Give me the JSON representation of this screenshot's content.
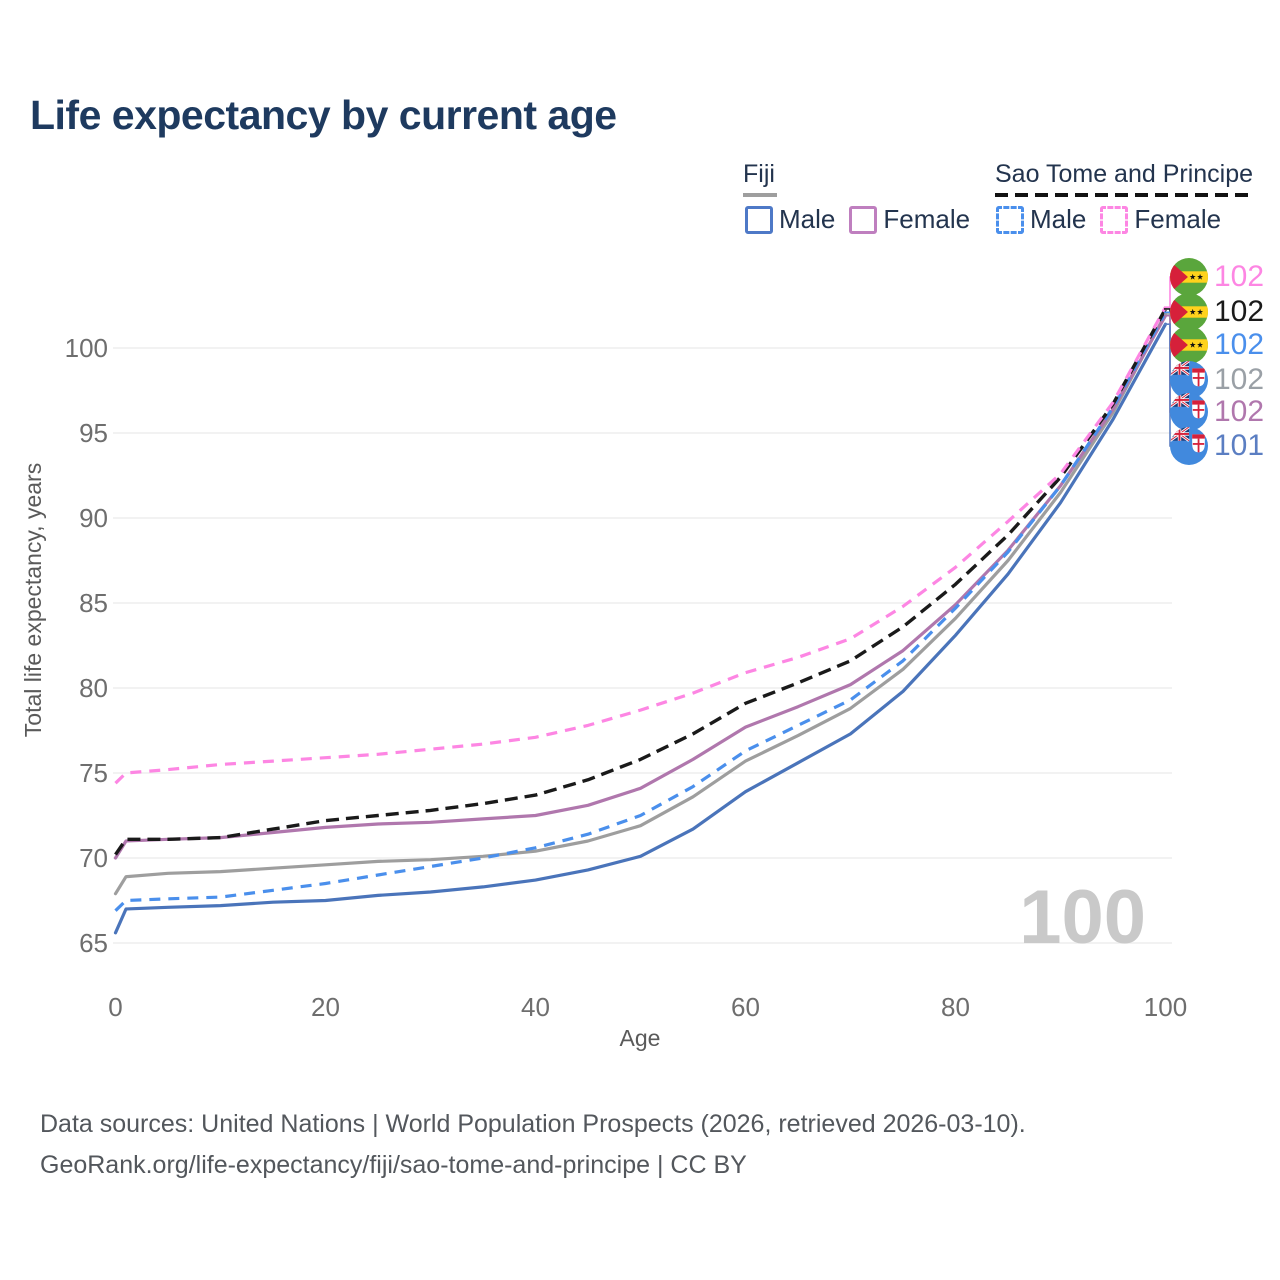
{
  "title": "Life expectancy by current age",
  "legend": {
    "fiji": {
      "label": "Fiji",
      "male_label": "Male",
      "female_label": "Female"
    },
    "sao_tome": {
      "label": "Sao Tome and Principe",
      "male_label": "Male",
      "female_label": "Female"
    }
  },
  "watermark": "100",
  "footer": {
    "line1": "Data sources: United Nations | World Population Prospects (2026, retrieved 2026-03-10).",
    "line2": "GeoRank.org/life-expectancy/fiji/sao-tome-and-principe | CC BY"
  },
  "colors": {
    "title_navy": "#1e3a5f",
    "tick_gray": "#6e6e6e",
    "gridline": "#ededed",
    "watermark_gray": "#c9c9c9",
    "fiji_male_blue": "#4a74ba",
    "fiji_female_purple": "#b077ad",
    "fiji_total_gray": "#9e9e9e",
    "stp_male_blue": "#4a8fec",
    "stp_female_pink": "#fd86e3",
    "stp_total_black": "#1a1a1a"
  },
  "chart_data": {
    "type": "line",
    "title": "Life expectancy by current age",
    "xlabel": "Age",
    "ylabel": "Total life expectancy, years",
    "xticks": [
      0,
      20,
      40,
      60,
      80,
      100
    ],
    "yticks": [
      65,
      70,
      75,
      80,
      85,
      90,
      95,
      100
    ],
    "xlim": [
      0,
      100
    ],
    "ylim": [
      63,
      104
    ],
    "grid": "horizontal",
    "legend_position": "top-right",
    "ages": [
      0,
      1,
      5,
      10,
      15,
      20,
      25,
      30,
      35,
      40,
      45,
      50,
      55,
      60,
      65,
      70,
      75,
      80,
      85,
      90,
      95,
      100
    ],
    "series": [
      {
        "id": "stp_female",
        "name": "Sao Tome and Principe Female",
        "style": "dashed",
        "color": "#fd86e3",
        "values": [
          74.4,
          75.0,
          75.2,
          75.5,
          75.7,
          75.9,
          76.1,
          76.4,
          76.7,
          77.1,
          77.8,
          78.7,
          79.7,
          80.9,
          81.8,
          82.9,
          84.8,
          87.1,
          89.8,
          92.6,
          96.8,
          102.4
        ]
      },
      {
        "id": "stp_total",
        "name": "Sao Tome and Principe Total",
        "style": "dashed",
        "color": "#1a1a1a",
        "values": [
          70.2,
          71.1,
          71.1,
          71.2,
          71.7,
          72.2,
          72.5,
          72.8,
          73.2,
          73.7,
          74.6,
          75.8,
          77.3,
          79.1,
          80.3,
          81.6,
          83.6,
          86.1,
          89.0,
          92.4,
          96.7,
          102.3
        ]
      },
      {
        "id": "stp_male",
        "name": "Sao Tome and Principe Male",
        "style": "dashed",
        "color": "#4a8fec",
        "values": [
          66.9,
          67.5,
          67.6,
          67.7,
          68.1,
          68.5,
          69.0,
          69.5,
          70.0,
          70.6,
          71.4,
          72.5,
          74.2,
          76.3,
          77.8,
          79.3,
          81.6,
          84.7,
          88.0,
          91.9,
          96.5,
          102.1
        ]
      },
      {
        "id": "fiji_total",
        "name": "Fiji Total",
        "style": "solid",
        "color": "#9e9e9e",
        "values": [
          67.9,
          68.9,
          69.1,
          69.2,
          69.4,
          69.6,
          69.8,
          69.9,
          70.1,
          70.4,
          71.0,
          71.9,
          73.6,
          75.7,
          77.2,
          78.8,
          81.1,
          84.1,
          87.5,
          91.5,
          96.2,
          102.0
        ]
      },
      {
        "id": "fiji_female",
        "name": "Fiji Female",
        "style": "solid",
        "color": "#b077ad",
        "values": [
          70.0,
          71.0,
          71.1,
          71.2,
          71.5,
          71.8,
          72.0,
          72.1,
          72.3,
          72.5,
          73.1,
          74.1,
          75.8,
          77.7,
          78.9,
          80.2,
          82.2,
          84.9,
          88.1,
          91.9,
          96.4,
          101.9
        ]
      },
      {
        "id": "fiji_male",
        "name": "Fiji Male",
        "style": "solid",
        "color": "#4a74ba",
        "values": [
          65.6,
          67.0,
          67.1,
          67.2,
          67.4,
          67.5,
          67.8,
          68.0,
          68.3,
          68.7,
          69.3,
          70.1,
          71.7,
          73.9,
          75.6,
          77.3,
          79.8,
          83.1,
          86.7,
          90.9,
          95.8,
          101.4
        ]
      }
    ],
    "end_labels": [
      {
        "value": "102",
        "flag": "stp",
        "series": "stp_female",
        "color": "#fd86e3"
      },
      {
        "value": "102",
        "flag": "stp",
        "series": "stp_total",
        "color": "#1a1a1a"
      },
      {
        "value": "102",
        "flag": "stp",
        "series": "stp_male",
        "color": "#4a8fec"
      },
      {
        "value": "102",
        "flag": "fiji",
        "series": "fiji_total",
        "color": "#9aa0a6"
      },
      {
        "value": "102",
        "flag": "fiji",
        "series": "fiji_female",
        "color": "#b077ad"
      },
      {
        "value": "101",
        "flag": "fiji",
        "series": "fiji_male",
        "color": "#5b7ec2"
      }
    ]
  }
}
